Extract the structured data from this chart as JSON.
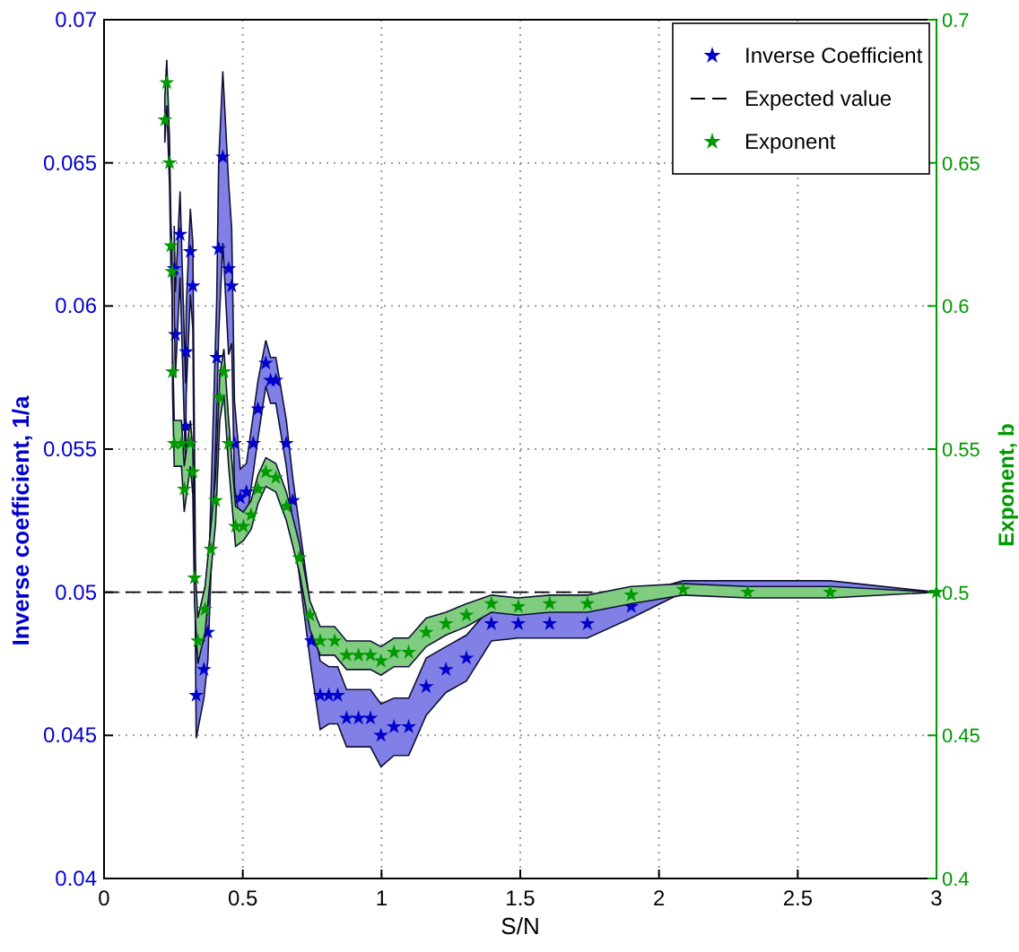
{
  "chart_data": {
    "type": "scatter",
    "xlabel": "S/N",
    "ylabel": "Inverse coefficient, 1/a",
    "y2label": "Exponent, b",
    "xlim": [
      0,
      3
    ],
    "xticks": [
      0,
      0.5,
      1,
      1.5,
      2,
      2.5,
      3
    ],
    "ylim": [
      0.04,
      0.07
    ],
    "yticks": [
      0.04,
      0.045,
      0.05,
      0.055,
      0.06,
      0.065,
      0.07
    ],
    "y2lim": [
      0.4,
      0.7
    ],
    "y2ticks": [
      0.4,
      0.45,
      0.5,
      0.55,
      0.6,
      0.65,
      0.7
    ],
    "grid": true,
    "legend": "top right",
    "marker": "star",
    "ref_lines": [
      {
        "axis": "y",
        "value": 0.05,
        "label": "Expected value",
        "color": "#000000",
        "line_style": "dashed"
      }
    ],
    "series": [
      {
        "name": "Inverse Coefficient",
        "color": "#0000cc",
        "x": [
          0.253,
          0.257,
          0.274,
          0.294,
          0.296,
          0.311,
          0.32,
          0.332,
          0.36,
          0.374,
          0.406,
          0.413,
          0.428,
          0.449,
          0.46,
          0.47,
          0.491,
          0.513,
          0.538,
          0.555,
          0.583,
          0.6,
          0.619,
          0.657,
          0.68,
          0.747,
          0.779,
          0.81,
          0.842,
          0.874,
          0.917,
          0.96,
          0.998,
          1.045,
          1.098,
          1.161,
          1.232,
          1.306,
          1.396,
          1.493,
          1.606,
          1.742,
          1.9,
          2.087,
          2.32,
          2.617,
          3.0
        ],
        "values": [
          0.0613,
          0.059,
          0.0625,
          0.0558,
          0.0584,
          0.0619,
          0.0607,
          0.0464,
          0.0473,
          0.0486,
          0.0582,
          0.062,
          0.0652,
          0.0613,
          0.0607,
          0.0552,
          0.0533,
          0.0535,
          0.0552,
          0.0564,
          0.058,
          0.0574,
          0.0574,
          0.0552,
          0.0532,
          0.0483,
          0.0464,
          0.0464,
          0.0464,
          0.0456,
          0.0456,
          0.0456,
          0.045,
          0.0453,
          0.0453,
          0.0467,
          0.0473,
          0.0477,
          0.0489,
          0.0489,
          0.0489,
          0.0489,
          0.0495,
          null,
          null,
          null,
          null
        ],
        "lower": [
          0.0598,
          0.0575,
          0.061,
          0.0543,
          0.0569,
          0.0604,
          0.0592,
          0.0449,
          0.0463,
          0.0476,
          0.0562,
          0.059,
          0.0622,
          0.0583,
          0.0587,
          0.0537,
          0.0523,
          0.0525,
          0.0542,
          0.0554,
          0.0572,
          0.0566,
          0.0566,
          0.0544,
          0.0524,
          0.0473,
          0.0452,
          0.0454,
          0.0454,
          0.0446,
          0.0446,
          0.0446,
          0.0439,
          0.0443,
          0.0443,
          0.0457,
          0.0465,
          0.0469,
          0.0483,
          0.0484,
          0.0484,
          0.0484,
          0.0491,
          0.05,
          0.05,
          0.05,
          0.05
        ],
        "upper": [
          0.0628,
          0.0605,
          0.064,
          0.0573,
          0.0599,
          0.0634,
          0.0622,
          0.0479,
          0.0483,
          0.0496,
          0.0602,
          0.065,
          0.0682,
          0.0643,
          0.0627,
          0.0567,
          0.0543,
          0.0545,
          0.0562,
          0.0574,
          0.0588,
          0.0582,
          0.0582,
          0.056,
          0.054,
          0.0493,
          0.0476,
          0.0474,
          0.0474,
          0.0466,
          0.0466,
          0.0466,
          0.0461,
          0.0463,
          0.0463,
          0.0477,
          0.0481,
          0.0485,
          0.0495,
          0.0494,
          0.0494,
          0.0494,
          0.0499,
          0.0504,
          0.0504,
          0.0504,
          0.05
        ]
      },
      {
        "name": "Exponent",
        "color": "#009900",
        "axis": "y2",
        "x": [
          0.219,
          0.226,
          0.236,
          0.241,
          0.245,
          0.247,
          0.253,
          0.279,
          0.289,
          0.311,
          0.32,
          0.326,
          0.338,
          0.364,
          0.385,
          0.402,
          0.417,
          0.432,
          0.449,
          0.474,
          0.502,
          0.53,
          0.555,
          0.583,
          0.619,
          0.657,
          0.704,
          0.742,
          0.779,
          0.831,
          0.874,
          0.917,
          0.96,
          0.998,
          1.045,
          1.098,
          1.161,
          1.232,
          1.306,
          1.396,
          1.493,
          1.606,
          1.742,
          1.9,
          2.087,
          2.32,
          2.617,
          3.0
        ],
        "values": [
          0.665,
          0.678,
          0.65,
          0.621,
          0.612,
          0.577,
          0.552,
          0.552,
          0.536,
          0.552,
          0.542,
          0.505,
          0.483,
          0.494,
          0.515,
          0.532,
          0.568,
          0.577,
          0.552,
          0.523,
          0.523,
          0.527,
          0.536,
          0.542,
          0.54,
          0.53,
          0.512,
          0.492,
          0.483,
          0.483,
          0.478,
          0.478,
          0.478,
          0.476,
          0.479,
          0.479,
          0.486,
          0.489,
          0.492,
          0.496,
          0.495,
          0.496,
          0.496,
          0.499,
          0.501,
          0.5,
          0.5,
          0.5
        ],
        "lower": [
          0.657,
          0.67,
          0.642,
          0.613,
          0.604,
          0.569,
          0.544,
          0.544,
          0.528,
          0.544,
          0.534,
          0.497,
          0.475,
          0.486,
          0.507,
          0.524,
          0.56,
          0.569,
          0.544,
          0.516,
          0.518,
          0.522,
          0.531,
          0.537,
          0.535,
          0.525,
          0.507,
          0.487,
          0.478,
          0.478,
          0.473,
          0.473,
          0.473,
          0.471,
          0.474,
          0.474,
          0.481,
          0.485,
          0.488,
          0.493,
          0.492,
          0.493,
          0.493,
          0.496,
          0.499,
          0.498,
          0.498,
          0.5
        ],
        "upper": [
          0.673,
          0.686,
          0.658,
          0.629,
          0.62,
          0.585,
          0.56,
          0.56,
          0.544,
          0.56,
          0.55,
          0.513,
          0.491,
          0.502,
          0.523,
          0.54,
          0.576,
          0.585,
          0.56,
          0.53,
          0.528,
          0.532,
          0.541,
          0.547,
          0.545,
          0.535,
          0.517,
          0.497,
          0.488,
          0.488,
          0.483,
          0.483,
          0.483,
          0.481,
          0.484,
          0.484,
          0.491,
          0.493,
          0.496,
          0.499,
          0.498,
          0.499,
          0.499,
          0.502,
          0.503,
          0.502,
          0.502,
          0.5
        ]
      }
    ]
  }
}
